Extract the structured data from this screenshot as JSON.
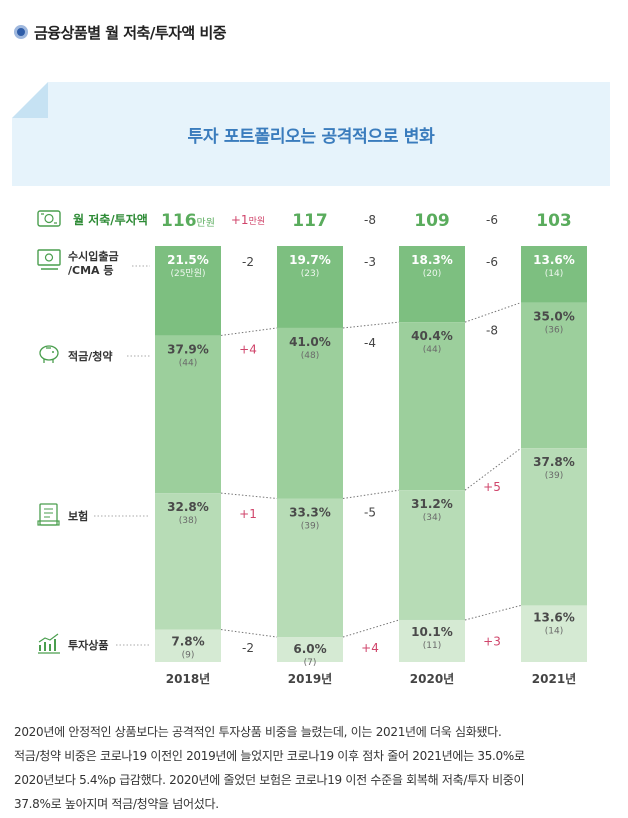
{
  "header": {
    "title": "금융상품별 월 저축/투자액 비중"
  },
  "banner": {
    "text": "투자 포트폴리오는 공격적으로 변화"
  },
  "colors": {
    "cash": "#7dbf80",
    "savings": "#9ccf9c",
    "insurance": "#b7dcb6",
    "invest": "#d5ead3",
    "increase": "#d0456b",
    "total": "#5aac5d",
    "icon": "#4a9e4e"
  },
  "chart_data": {
    "type": "bar",
    "stacked": true,
    "categories": [
      "2018년",
      "2019년",
      "2020년",
      "2021년"
    ],
    "totals": {
      "label": "월 저축/투자액",
      "values": [
        116,
        117,
        109,
        103
      ],
      "unit": "만원",
      "changes": [
        "+1",
        "-8",
        "-6"
      ],
      "change_unit": "만원"
    },
    "series": [
      {
        "key": "cash",
        "name_lines": [
          "수시입출금",
          "/CMA 등"
        ],
        "icon": "cash-icon",
        "pct": [
          21.5,
          19.7,
          18.3,
          13.6
        ],
        "amounts": [
          "(25만원)",
          "(23)",
          "(20)",
          "(14)"
        ],
        "changes": [
          "-2",
          "-3",
          "-6"
        ]
      },
      {
        "key": "savings",
        "name_lines": [
          "적금/청약"
        ],
        "icon": "piggy-bank-icon",
        "pct": [
          37.9,
          41.0,
          40.4,
          35.0
        ],
        "amounts": [
          "(44)",
          "(48)",
          "(44)",
          "(36)"
        ],
        "changes": [
          "+4",
          "-4",
          "-8"
        ]
      },
      {
        "key": "insurance",
        "name_lines": [
          "보험"
        ],
        "icon": "document-icon",
        "pct": [
          32.8,
          33.3,
          31.2,
          37.8
        ],
        "amounts": [
          "(38)",
          "(39)",
          "(34)",
          "(39)"
        ],
        "changes": [
          "+1",
          "-5",
          "+5"
        ]
      },
      {
        "key": "invest",
        "name_lines": [
          "투자상품"
        ],
        "icon": "growth-chart-icon",
        "pct": [
          7.8,
          6.0,
          10.1,
          13.6
        ],
        "amounts": [
          "(9)",
          "(7)",
          "(11)",
          "(14)"
        ],
        "changes": [
          "-2",
          "+4",
          "+3"
        ]
      }
    ]
  },
  "description": [
    "2020년에 안정적인 상품보다는 공격적인 투자상품 비중을 늘렸는데, 이는 2021년에 더욱 심화됐다.",
    "적금/청약 비중은 코로나19 이전인 2019년에 늘었지만 코로나19 이후 점차 줄어 2021년에는 35.0%로",
    "2020년보다 5.4%p 급감했다. 2020년에 줄었던 보험은 코로나19 이전 수준을 회복해 저축/투자 비중이",
    "37.8%로 높아지며 적금/청약을 넘어섰다."
  ]
}
